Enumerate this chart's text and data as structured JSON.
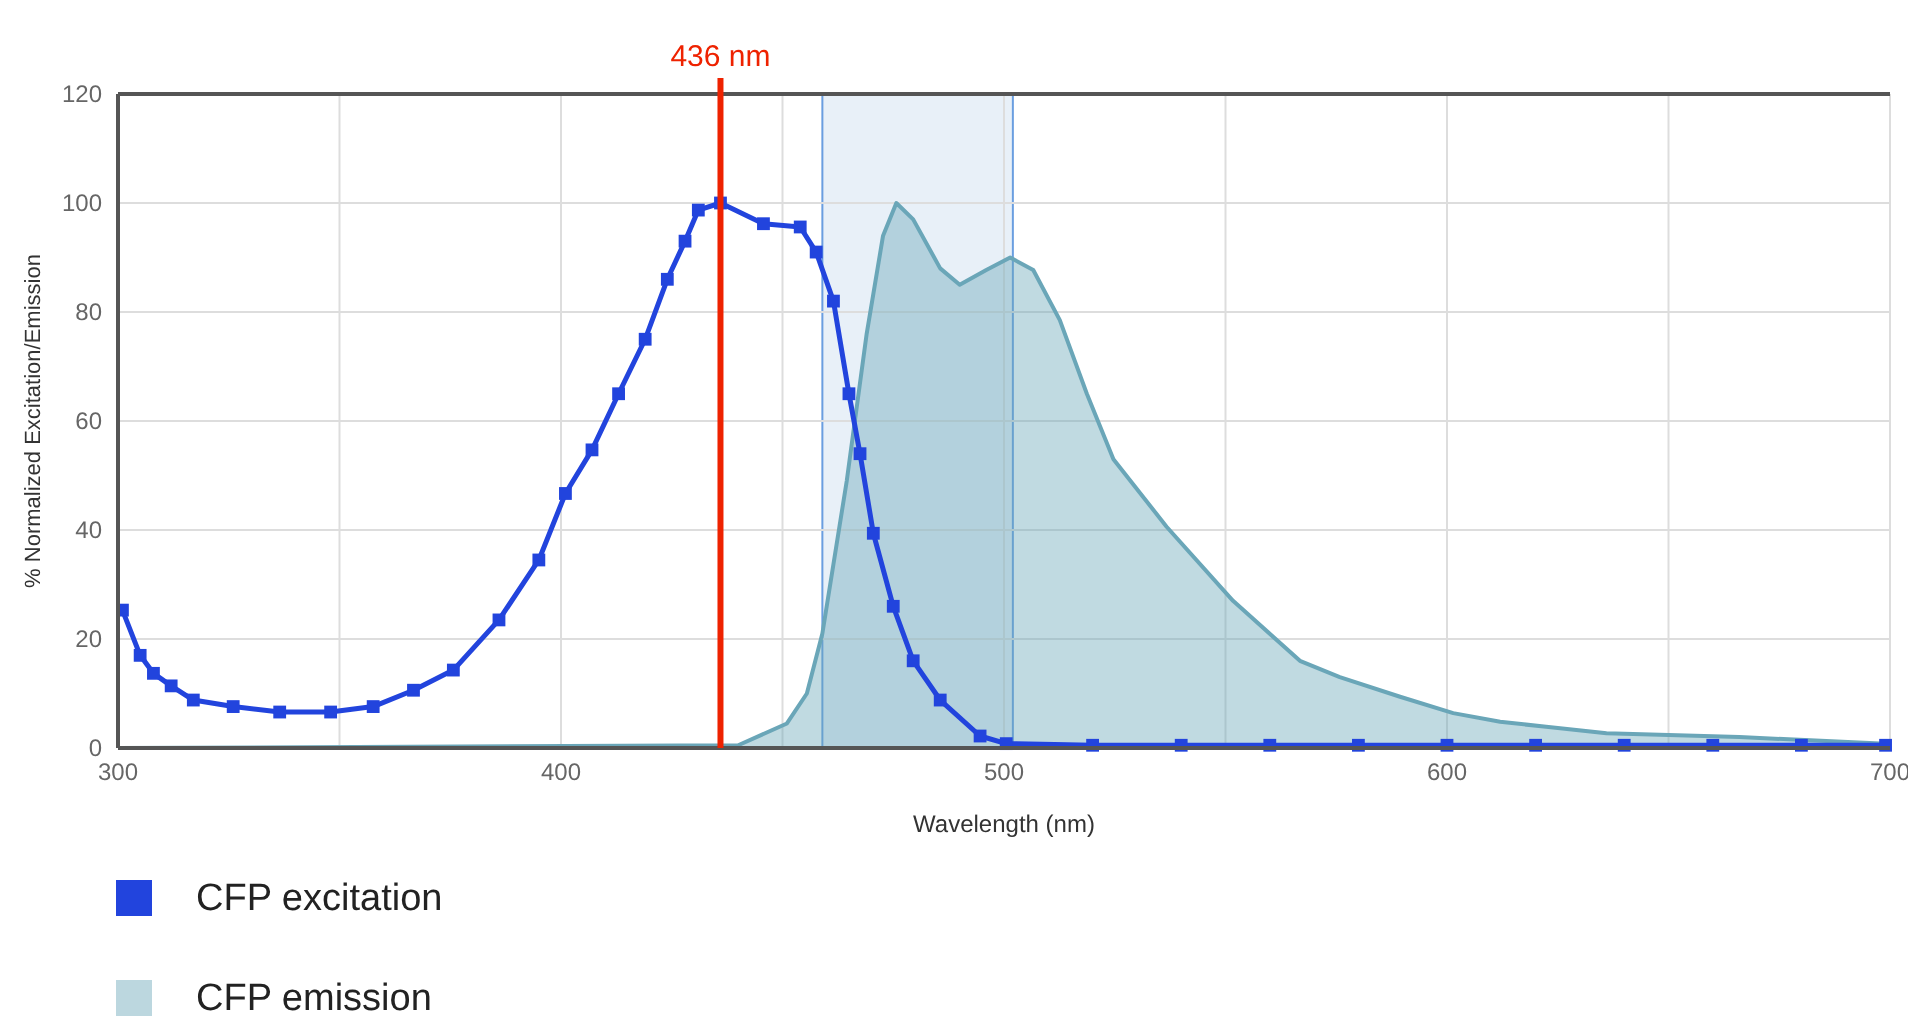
{
  "chart_data": {
    "type": "line",
    "xlabel": "Wavelength (nm)",
    "ylabel": "% Normalized Excitation/Emission",
    "xlim": [
      300,
      700
    ],
    "xticks": [
      300,
      400,
      500,
      600,
      700
    ],
    "ylim": [
      0,
      120
    ],
    "yticks": [
      0,
      20,
      40,
      60,
      80,
      100,
      120
    ],
    "grid": true,
    "legend": "bottom left",
    "ref_lines": [
      {
        "axis": "x",
        "value": 436,
        "label": "436 nm",
        "color": "#ee2200"
      }
    ],
    "bands": [
      {
        "axis": "x",
        "from": 459,
        "to": 502,
        "color": "#e8f0f8"
      }
    ],
    "series": [
      {
        "name": "CFP emission",
        "type": "area",
        "color": "#6aa6b8",
        "marker": "none",
        "x": [
          300,
          440,
          451,
          455.5,
          459,
          464.5,
          469,
          472.7,
          475.7,
          479.5,
          485.6,
          490,
          496,
          501.4,
          506.6,
          512.6,
          518.7,
          524.7,
          536.7,
          551.7,
          566.8,
          575.8,
          589.4,
          601.4,
          612,
          622.4,
          636,
          666,
          699
        ],
        "values": [
          0,
          0.5,
          4.5,
          10,
          21,
          49,
          76,
          94,
          100,
          97,
          88,
          85,
          87.7,
          90,
          87.7,
          78.5,
          65,
          53,
          40.6,
          27,
          16,
          13,
          9.4,
          6.4,
          4.8,
          3.9,
          2.7,
          2,
          0.8
        ]
      },
      {
        "name": "CFP excitation",
        "color": "#2244dd",
        "marker": "square",
        "x": [
          301,
          305,
          308,
          312,
          317,
          326,
          336.5,
          348,
          357.6,
          366.7,
          375.7,
          386,
          395,
          401,
          407,
          413,
          419,
          424,
          428,
          431,
          436,
          445.7,
          454,
          457.6,
          461.5,
          465,
          467.5,
          470.5,
          475,
          479.5,
          485.6,
          494.6,
          500.5,
          520,
          540,
          560,
          580,
          600,
          620,
          640,
          660,
          680,
          699
        ],
        "values": [
          25.3,
          17,
          13.7,
          11.4,
          8.8,
          7.6,
          6.6,
          6.6,
          7.6,
          10.6,
          14.3,
          23.5,
          34.5,
          46.7,
          54.7,
          65,
          75,
          86,
          93,
          98.7,
          100,
          96.2,
          95.6,
          91,
          82,
          65,
          54,
          39.4,
          26,
          16,
          8.8,
          2.2,
          0.8,
          0.5,
          0.5,
          0.5,
          0.5,
          0.5,
          0.5,
          0.5,
          0.5,
          0.5,
          0.5
        ]
      }
    ]
  }
}
